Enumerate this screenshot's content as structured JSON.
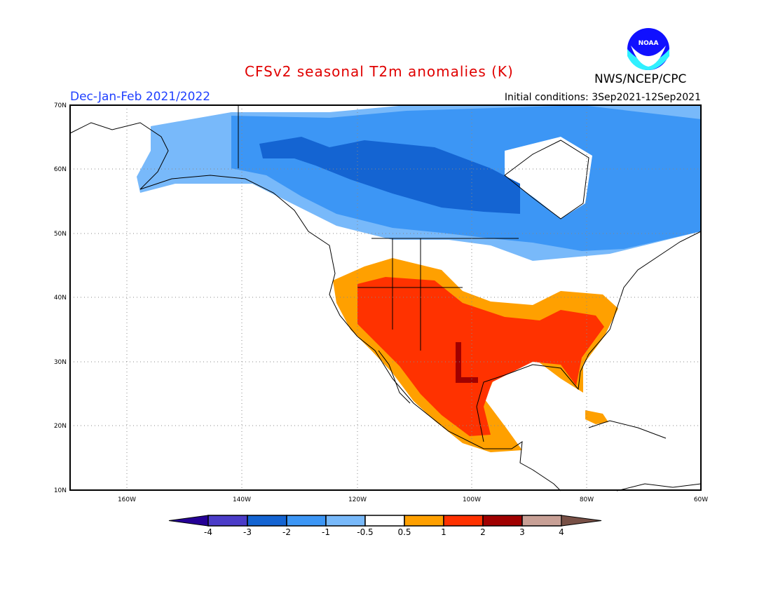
{
  "header": {
    "title": "CFSv2 seasonal T2m anomalies (K)",
    "period": "Dec-Jan-Feb 2021/2022",
    "initial_conditions": "Initial conditions: 3Sep2021-12Sep2021",
    "agency": "NWS/NCEP/CPC",
    "logo_text": "NOAA"
  },
  "map": {
    "lat_labels": [
      "70N",
      "60N",
      "50N",
      "40N",
      "30N",
      "20N",
      "10N"
    ],
    "lon_labels": [
      "160W",
      "140W",
      "120W",
      "100W",
      "80W",
      "60W"
    ],
    "lat_range": [
      10,
      70
    ],
    "lon_range": [
      -170,
      -60
    ]
  },
  "colorbar": {
    "labels": [
      "-4",
      "-3",
      "-2",
      "-1",
      "-0.5",
      "0.5",
      "1",
      "2",
      "3",
      "4"
    ],
    "colors": [
      "#250096",
      "#4b3cc8",
      "#1464d2",
      "#3c96f5",
      "#78b9fa",
      "#ffffff",
      "#ffa000",
      "#ff3200",
      "#a00000",
      "#c8a096",
      "#785046"
    ]
  },
  "colors": {
    "title": "#e00000",
    "period": "#2040ff"
  }
}
